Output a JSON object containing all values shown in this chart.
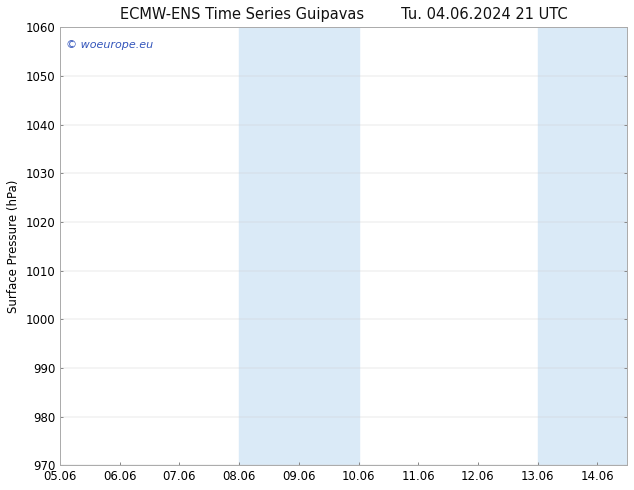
{
  "title_left": "ECMW-ENS Time Series Guipavas",
  "title_right": "Tu. 04.06.2024 21 UTC",
  "ylabel": "Surface Pressure (hPa)",
  "xlim": [
    0,
    9.5
  ],
  "ylim": [
    970,
    1060
  ],
  "yticks": [
    970,
    980,
    990,
    1000,
    1010,
    1020,
    1030,
    1040,
    1050,
    1060
  ],
  "xtick_labels": [
    "05.06",
    "06.06",
    "07.06",
    "08.06",
    "09.06",
    "10.06",
    "11.06",
    "12.06",
    "13.06",
    "14.06"
  ],
  "xtick_positions": [
    0,
    1,
    2,
    3,
    4,
    5,
    6,
    7,
    8,
    9
  ],
  "shaded_bands": [
    {
      "xmin": 3,
      "xmax": 5
    },
    {
      "xmin": 8,
      "xmax": 9.5
    }
  ],
  "shaded_color": "#daeaf7",
  "watermark_text": "© woeurope.eu",
  "watermark_color": "#3355bb",
  "background_color": "#ffffff",
  "plot_bg_color": "#ffffff",
  "title_fontsize": 10.5,
  "tick_fontsize": 8.5,
  "ylabel_fontsize": 8.5
}
